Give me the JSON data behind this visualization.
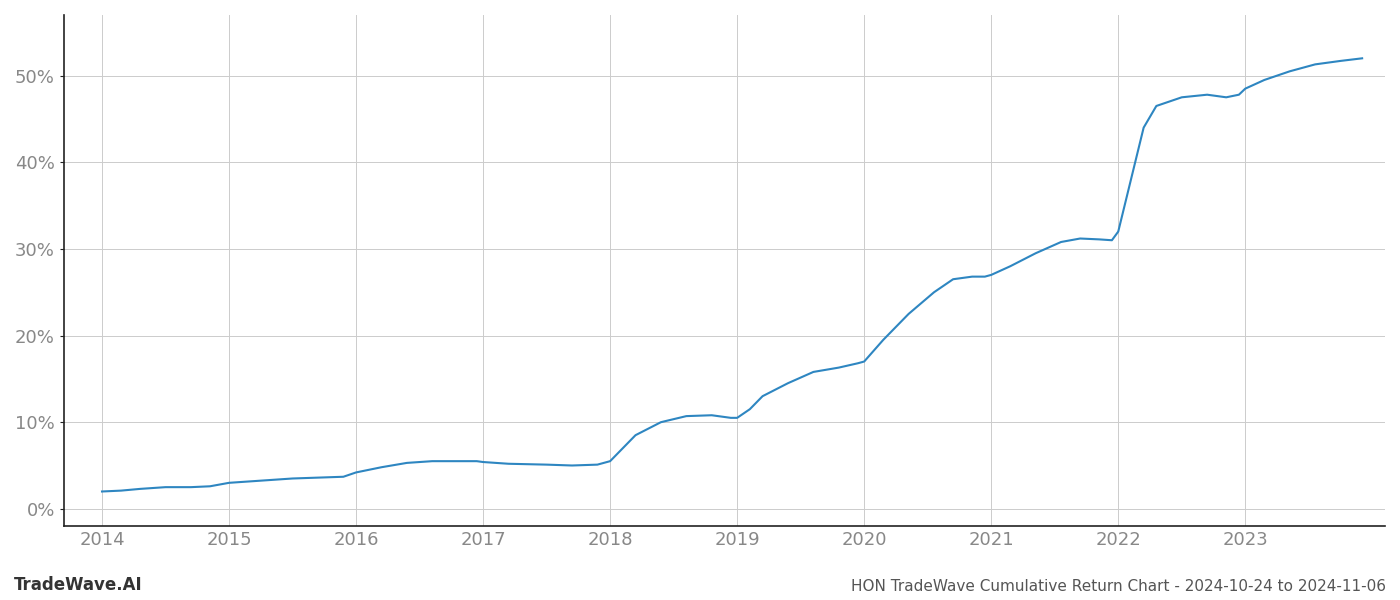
{
  "title": "HON TradeWave Cumulative Return Chart - 2024-10-24 to 2024-11-06",
  "watermark": "TradeWave.AI",
  "line_color": "#2e86c1",
  "background_color": "#ffffff",
  "grid_color": "#cccccc",
  "x_years": [
    2014,
    2015,
    2016,
    2017,
    2018,
    2019,
    2020,
    2021,
    2022,
    2023
  ],
  "x_data": [
    2014.0,
    2014.15,
    2014.3,
    2014.5,
    2014.7,
    2014.85,
    2015.0,
    2015.2,
    2015.5,
    2015.7,
    2015.9,
    2016.0,
    2016.2,
    2016.4,
    2016.6,
    2016.8,
    2016.95,
    2017.0,
    2017.2,
    2017.5,
    2017.7,
    2017.9,
    2018.0,
    2018.1,
    2018.2,
    2018.4,
    2018.6,
    2018.8,
    2018.95,
    2019.0,
    2019.1,
    2019.2,
    2019.4,
    2019.6,
    2019.8,
    2019.95,
    2020.0,
    2020.15,
    2020.35,
    2020.55,
    2020.7,
    2020.85,
    2020.95,
    2021.0,
    2021.15,
    2021.35,
    2021.55,
    2021.7,
    2021.85,
    2021.95,
    2022.0,
    2022.1,
    2022.2,
    2022.3,
    2022.5,
    2022.7,
    2022.85,
    2022.95,
    2023.0,
    2023.15,
    2023.35,
    2023.55,
    2023.75,
    2023.92
  ],
  "y_data": [
    2.0,
    2.1,
    2.3,
    2.5,
    2.5,
    2.6,
    3.0,
    3.2,
    3.5,
    3.6,
    3.7,
    4.2,
    4.8,
    5.3,
    5.5,
    5.5,
    5.5,
    5.4,
    5.2,
    5.1,
    5.0,
    5.1,
    5.5,
    7.0,
    8.5,
    10.0,
    10.7,
    10.8,
    10.5,
    10.5,
    11.5,
    13.0,
    14.5,
    15.8,
    16.3,
    16.8,
    17.0,
    19.5,
    22.5,
    25.0,
    26.5,
    26.8,
    26.8,
    27.0,
    28.0,
    29.5,
    30.8,
    31.2,
    31.1,
    31.0,
    32.0,
    38.0,
    44.0,
    46.5,
    47.5,
    47.8,
    47.5,
    47.8,
    48.5,
    49.5,
    50.5,
    51.3,
    51.7,
    52.0
  ],
  "ylim": [
    -2,
    57
  ],
  "xlim": [
    2013.7,
    2024.1
  ],
  "yticks": [
    0,
    10,
    20,
    30,
    40,
    50
  ],
  "ytick_labels": [
    "0%",
    "10%",
    "20%",
    "30%",
    "40%",
    "50%"
  ],
  "line_width": 1.5,
  "title_fontsize": 11,
  "watermark_fontsize": 12,
  "tick_fontsize": 13,
  "title_color": "#555555",
  "watermark_color": "#333333",
  "tick_color": "#888888",
  "left_spine_color": "#222222",
  "bottom_spine_color": "#222222"
}
